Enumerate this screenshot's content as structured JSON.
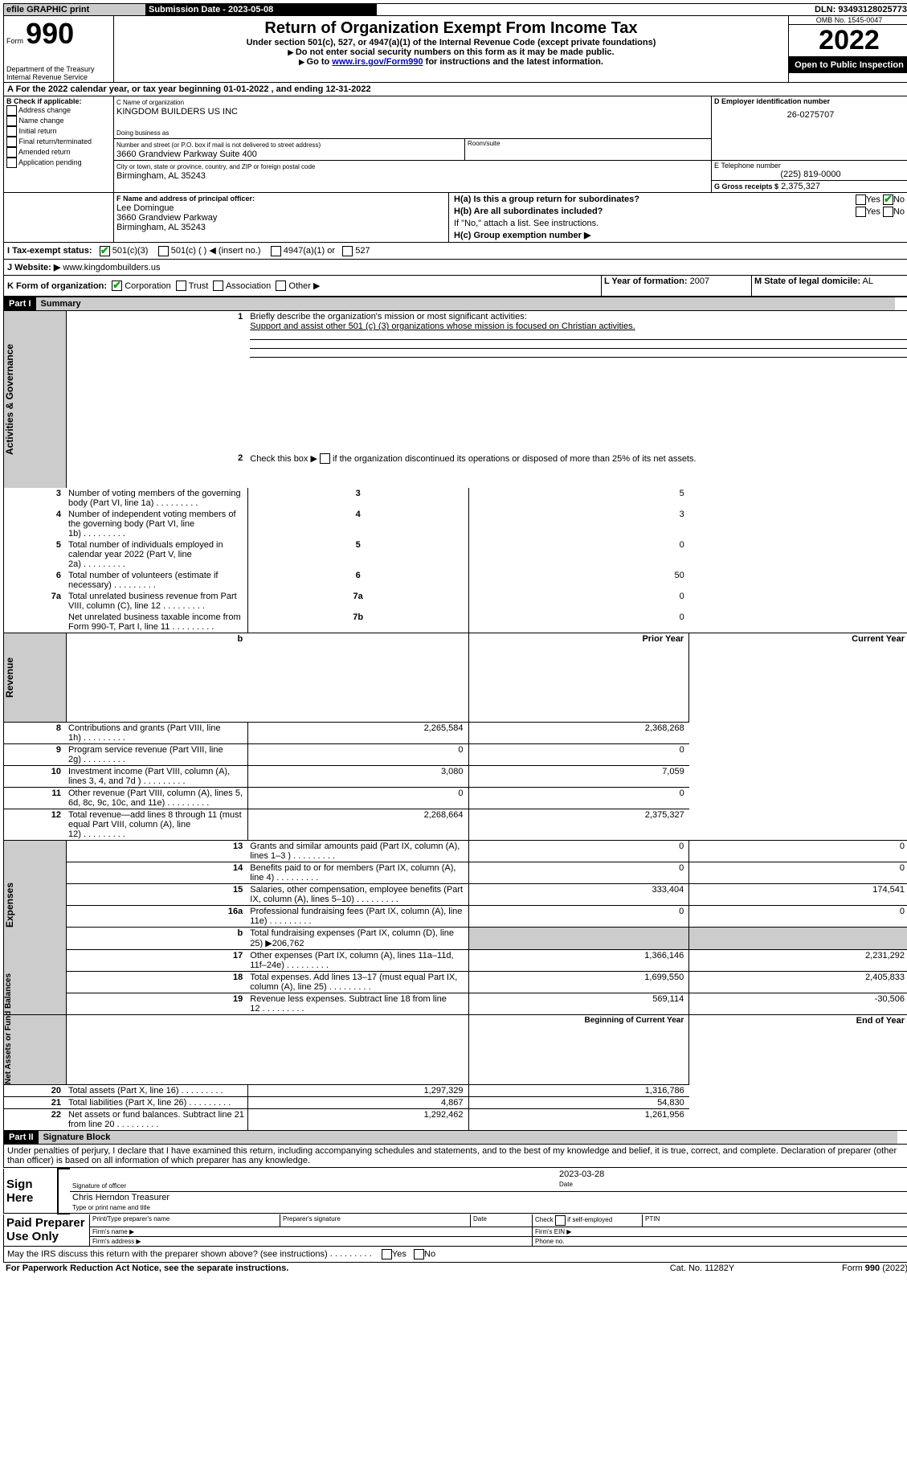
{
  "topbar": {
    "efile": "efile GRAPHIC print",
    "sub_label": "Submission Date - 2023-05-08",
    "dln": "DLN: 93493128025773"
  },
  "header": {
    "form_word": "Form",
    "form_num": "990",
    "dept": "Department of the Treasury",
    "irs": "Internal Revenue Service",
    "title": "Return of Organization Exempt From Income Tax",
    "subtitle": "Under section 501(c), 527, or 4947(a)(1) of the Internal Revenue Code (except private foundations)",
    "note1": "Do not enter social security numbers on this form as it may be made public.",
    "note2_pre": "Go to ",
    "note2_link": "www.irs.gov/Form990",
    "note2_post": " for instructions and the latest information.",
    "omb": "OMB No. 1545-0047",
    "year": "2022",
    "open": "Open to Public Inspection"
  },
  "line_a": "For the 2022 calendar year, or tax year beginning 01-01-2022    , and ending 12-31-2022",
  "box_b": {
    "label": "B Check if applicable:",
    "items": [
      "Address change",
      "Name change",
      "Initial return",
      "Final return/terminated",
      "Amended return",
      "Application pending"
    ]
  },
  "box_c": {
    "label": "C Name of organization",
    "name": "KINGDOM BUILDERS US INC",
    "dba_label": "Doing business as",
    "addr_label": "Number and street (or P.O. box if mail is not delivered to street address)",
    "room_label": "Room/suite",
    "addr": "3660 Grandview Parkway Suite 400",
    "city_label": "City or town, state or province, country, and ZIP or foreign postal code",
    "city": "Birmingham, AL  35243"
  },
  "box_d": {
    "label": "D Employer identification number",
    "val": "26-0275707"
  },
  "box_e": {
    "label": "E Telephone number",
    "val": "(225) 819-0000"
  },
  "box_g": {
    "label": "G Gross receipts $",
    "val": "2,375,327"
  },
  "box_f": {
    "label": "F  Name and address of principal officer:",
    "lines": [
      "Lee Domingue",
      "3660 Grandview Parkway",
      "Birmingham, AL  35243"
    ]
  },
  "box_h": {
    "a": "H(a)  Is this a group return for subordinates?",
    "b": "H(b)  Are all subordinates included?",
    "b_note": "If \"No,\" attach a list. See instructions.",
    "c": "H(c)  Group exemption number ▶",
    "yes": "Yes",
    "no": "No"
  },
  "line_i": {
    "label": "I     Tax-exempt status:",
    "opts": [
      "501(c)(3)",
      "501(c) (   ) ◀ (insert no.)",
      "4947(a)(1) or",
      "527"
    ]
  },
  "line_j": {
    "label": "J    Website: ▶",
    "val": "www.kingdombuilders.us"
  },
  "line_k": {
    "label": "K Form of organization:",
    "opts": [
      "Corporation",
      "Trust",
      "Association",
      "Other ▶"
    ]
  },
  "line_l": {
    "label": "L Year of formation:",
    "val": "2007"
  },
  "line_m": {
    "label": "M State of legal domicile:",
    "val": "AL"
  },
  "parts": {
    "p1": "Part I",
    "p1t": "Summary",
    "p2": "Part II",
    "p2t": "Signature Block"
  },
  "side_labels": {
    "gov": "Activities & Governance",
    "rev": "Revenue",
    "exp": "Expenses",
    "net": "Net Assets or Fund Balances"
  },
  "summary": {
    "l1": "Briefly describe the organization's mission or most significant activities:",
    "l1_text": "Support and assist other 501 (c) (3) organizations whose mission is focused on Christian activities.",
    "l2": "Check this box ▶        if the organization discontinued its operations or disposed of more than 25% of its net assets.",
    "rows_gov": [
      {
        "n": "3",
        "t": "Number of voting members of the governing body (Part VI, line 1a)",
        "box": "3",
        "v": "5"
      },
      {
        "n": "4",
        "t": "Number of independent voting members of the governing body (Part VI, line 1b)",
        "box": "4",
        "v": "3"
      },
      {
        "n": "5",
        "t": "Total number of individuals employed in calendar year 2022 (Part V, line 2a)",
        "box": "5",
        "v": "0"
      },
      {
        "n": "6",
        "t": "Total number of volunteers (estimate if necessary)",
        "box": "6",
        "v": "50"
      },
      {
        "n": "7a",
        "t": "Total unrelated business revenue from Part VIII, column (C), line 12",
        "box": "7a",
        "v": "0"
      },
      {
        "n": "",
        "t": "Net unrelated business taxable income from Form 990-T, Part I, line 11",
        "box": "7b",
        "v": "0"
      }
    ],
    "hdr_prior": "Prior Year",
    "hdr_curr": "Current Year",
    "rows_rev": [
      {
        "n": "8",
        "t": "Contributions and grants (Part VIII, line 1h)",
        "p": "2,265,584",
        "c": "2,368,268"
      },
      {
        "n": "9",
        "t": "Program service revenue (Part VIII, line 2g)",
        "p": "0",
        "c": "0"
      },
      {
        "n": "10",
        "t": "Investment income (Part VIII, column (A), lines 3, 4, and 7d )",
        "p": "3,080",
        "c": "7,059"
      },
      {
        "n": "11",
        "t": "Other revenue (Part VIII, column (A), lines 5, 6d, 8c, 9c, 10c, and 11e)",
        "p": "0",
        "c": "0"
      },
      {
        "n": "12",
        "t": "Total revenue—add lines 8 through 11 (must equal Part VIII, column (A), line 12)",
        "p": "2,268,664",
        "c": "2,375,327"
      }
    ],
    "rows_exp": [
      {
        "n": "13",
        "t": "Grants and similar amounts paid (Part IX, column (A), lines 1–3 )",
        "p": "0",
        "c": "0"
      },
      {
        "n": "14",
        "t": "Benefits paid to or for members (Part IX, column (A), line 4)",
        "p": "0",
        "c": "0"
      },
      {
        "n": "15",
        "t": "Salaries, other compensation, employee benefits (Part IX, column (A), lines 5–10)",
        "p": "333,404",
        "c": "174,541"
      },
      {
        "n": "16a",
        "t": "Professional fundraising fees (Part IX, column (A), line 11e)",
        "p": "0",
        "c": "0"
      },
      {
        "n": "b",
        "t": "Total fundraising expenses (Part IX, column (D), line 25) ▶206,762",
        "p": "",
        "c": "",
        "gray": true
      },
      {
        "n": "17",
        "t": "Other expenses (Part IX, column (A), lines 11a–11d, 11f–24e)",
        "p": "1,366,146",
        "c": "2,231,292"
      },
      {
        "n": "18",
        "t": "Total expenses. Add lines 13–17 (must equal Part IX, column (A), line 25)",
        "p": "1,699,550",
        "c": "2,405,833"
      },
      {
        "n": "19",
        "t": "Revenue less expenses. Subtract line 18 from line 12",
        "p": "569,114",
        "c": "-30,506"
      }
    ],
    "hdr_beg": "Beginning of Current Year",
    "hdr_end": "End of Year",
    "rows_net": [
      {
        "n": "20",
        "t": "Total assets (Part X, line 16)",
        "p": "1,297,329",
        "c": "1,316,786"
      },
      {
        "n": "21",
        "t": "Total liabilities (Part X, line 26)",
        "p": "4,867",
        "c": "54,830"
      },
      {
        "n": "22",
        "t": "Net assets or fund balances. Subtract line 21 from line 20",
        "p": "1,292,462",
        "c": "1,261,956"
      }
    ]
  },
  "sig": {
    "penalties": "Under penalties of perjury, I declare that I have examined this return, including accompanying schedules and statements, and to the best of my knowledge and belief, it is true, correct, and complete. Declaration of preparer (other than officer) is based on all information of which preparer has any knowledge.",
    "sign_here": "Sign Here",
    "sig_officer": "Signature of officer",
    "date_label": "Date",
    "date_val": "2023-03-28",
    "name": "Chris Herndon  Treasurer",
    "name_label": "Type or print name and title",
    "paid": "Paid Preparer Use Only",
    "pt_name": "Print/Type preparer's name",
    "prep_sig": "Preparer's signature",
    "check_se": "Check          if self-employed",
    "ptin": "PTIN",
    "firm_name": "Firm's name    ▶",
    "firm_ein": "Firm's EIN ▶",
    "firm_addr": "Firm's address ▶",
    "phone": "Phone no.",
    "discuss": "May the IRS discuss this return with the preparer shown above? (see instructions)",
    "yes": "Yes",
    "no": "No"
  },
  "footer": {
    "pra": "For Paperwork Reduction Act Notice, see the separate instructions.",
    "cat": "Cat. No. 11282Y",
    "form": "Form 990 (2022)"
  }
}
